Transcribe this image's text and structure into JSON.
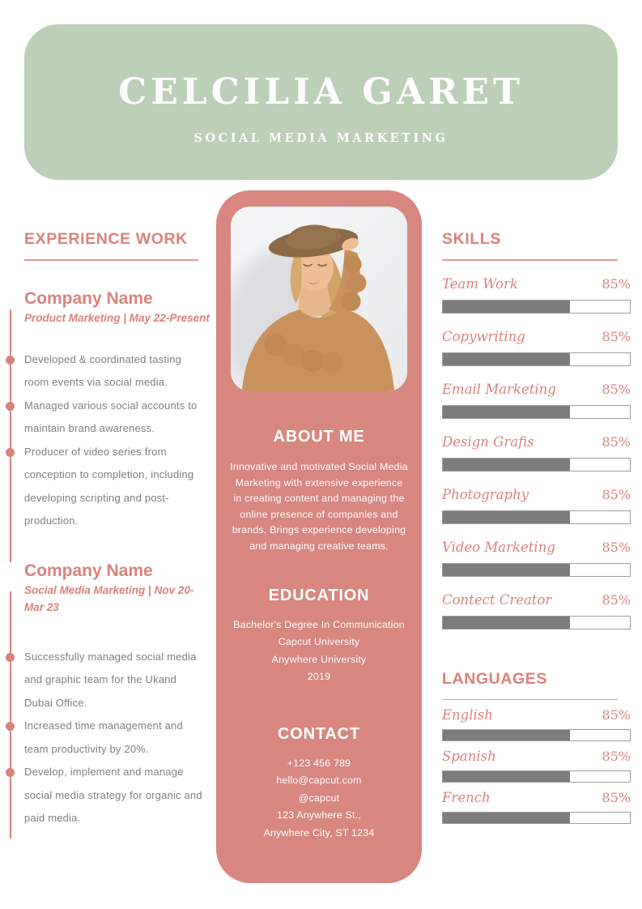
{
  "header": {
    "name": "CELCILIA GARET",
    "subtitle": "SOCIAL MEDIA MARKETING"
  },
  "experience": {
    "heading": "EXPERIENCE WORK",
    "jobs": [
      {
        "company": "Company Name",
        "meta": "Product Marketing | May 22-Present",
        "bullets": [
          "Developed & coordinated tasting room events via social media.",
          "Managed various social accounts to maintain brand awareness.",
          "Producer of video series from conception to completion, including developing scripting and post-production."
        ]
      },
      {
        "company": "Company Name",
        "meta": "Social Media Marketing | Nov 20-Mar 23",
        "bullets": [
          "Successfully managed social media and graphic team for the Ukand Dubai Office.",
          "Increased time management and team productivity by 20%.",
          "Develop, implement and manage social media strategy for organic and paid media."
        ]
      }
    ]
  },
  "profile": {
    "photo_description": "woman wearing brown hat and knit sweater",
    "about": {
      "heading": "ABOUT ME",
      "text": "Innovative and motivated Social Media Marketing with extensive experience in creating content and managing the online presence of companies and brands. Brings experience developing and managing creative teams."
    },
    "education": {
      "heading": "EDUCATION",
      "lines": [
        "Bachelor's Degree In Communication",
        "Capcut University",
        "Anywhere University",
        "2019"
      ]
    },
    "contact": {
      "heading": "CONTACT",
      "lines": [
        "+123  456 789",
        "hello@capcut.com",
        "@capcut",
        "123 Anywhere St.,",
        "Anywhere City, ST 1234"
      ]
    }
  },
  "skills": {
    "heading": "SKILLS",
    "items": [
      {
        "label": "Team Work",
        "percent": "85%",
        "bar_width_pct": 68
      },
      {
        "label": "Copywriting",
        "percent": "85%",
        "bar_width_pct": 68
      },
      {
        "label": "Email Marketing",
        "percent": "85%",
        "bar_width_pct": 68
      },
      {
        "label": "Design Grafis",
        "percent": "85%",
        "bar_width_pct": 68
      },
      {
        "label": "Photography",
        "percent": "85%",
        "bar_width_pct": 68
      },
      {
        "label": "Video Marketing",
        "percent": "85%",
        "bar_width_pct": 68
      },
      {
        "label": "Contect Creator",
        "percent": "85%",
        "bar_width_pct": 68
      }
    ]
  },
  "languages": {
    "heading": "LANGUAGES",
    "items": [
      {
        "label": "English",
        "percent": "85%",
        "bar_width_pct": 68
      },
      {
        "label": "Spanish",
        "percent": "85%",
        "bar_width_pct": 68
      },
      {
        "label": "French",
        "percent": "85%",
        "bar_width_pct": 68
      }
    ]
  },
  "colors": {
    "header_green": "#bccfb7",
    "panel_pink": "#d7877f",
    "accent_salmon": "#d9827b",
    "body_gray": "#7d7f82",
    "bar_fill_gray": "#7c7c7c",
    "bar_border_gray": "#9e9e9e"
  }
}
